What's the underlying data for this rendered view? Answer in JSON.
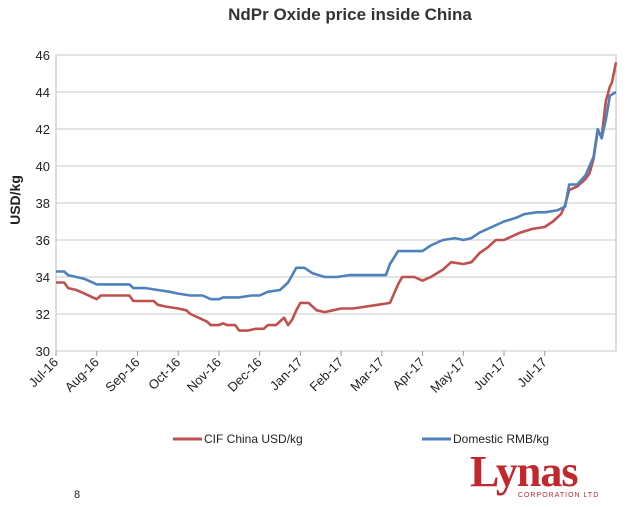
{
  "chart_data": {
    "type": "line",
    "title": "NdPr Oxide price inside China",
    "ylabel": "USD/kg",
    "xlabel": "",
    "ylim": [
      30,
      46
    ],
    "yticks": [
      "30",
      "32",
      "34",
      "36",
      "38",
      "40",
      "42",
      "44",
      "46"
    ],
    "x_categories": [
      "Jul-16",
      "Aug-16",
      "Sep-16",
      "Oct-16",
      "Nov-16",
      "Dec-16",
      "Jan-17",
      "Feb-17",
      "Mar-17",
      "Apr-17",
      "May-17",
      "Jun-17",
      "Jul-17"
    ],
    "grid": "horizontal",
    "legend_position": "bottom",
    "series": [
      {
        "name": "CIF China USD/kg",
        "color": "#c0504d",
        "points": [
          [
            0,
            33.7
          ],
          [
            0.2,
            33.7
          ],
          [
            0.3,
            33.4
          ],
          [
            0.5,
            33.3
          ],
          [
            0.7,
            33.1
          ],
          [
            0.9,
            32.9
          ],
          [
            1.0,
            32.8
          ],
          [
            1.1,
            33.0
          ],
          [
            1.3,
            33.0
          ],
          [
            1.6,
            33.0
          ],
          [
            1.8,
            33.0
          ],
          [
            1.9,
            32.7
          ],
          [
            2.2,
            32.7
          ],
          [
            2.4,
            32.7
          ],
          [
            2.5,
            32.5
          ],
          [
            2.7,
            32.4
          ],
          [
            3.0,
            32.3
          ],
          [
            3.2,
            32.2
          ],
          [
            3.3,
            32.0
          ],
          [
            3.5,
            31.8
          ],
          [
            3.7,
            31.6
          ],
          [
            3.8,
            31.4
          ],
          [
            4.0,
            31.4
          ],
          [
            4.1,
            31.5
          ],
          [
            4.2,
            31.4
          ],
          [
            4.4,
            31.4
          ],
          [
            4.5,
            31.1
          ],
          [
            4.7,
            31.1
          ],
          [
            4.9,
            31.2
          ],
          [
            5.1,
            31.2
          ],
          [
            5.2,
            31.4
          ],
          [
            5.4,
            31.4
          ],
          [
            5.5,
            31.6
          ],
          [
            5.6,
            31.8
          ],
          [
            5.7,
            31.4
          ],
          [
            5.8,
            31.7
          ],
          [
            5.9,
            32.2
          ],
          [
            6.0,
            32.6
          ],
          [
            6.2,
            32.6
          ],
          [
            6.3,
            32.4
          ],
          [
            6.4,
            32.2
          ],
          [
            6.6,
            32.1
          ],
          [
            6.8,
            32.2
          ],
          [
            7.0,
            32.3
          ],
          [
            7.3,
            32.3
          ],
          [
            7.6,
            32.4
          ],
          [
            7.9,
            32.5
          ],
          [
            8.2,
            32.6
          ],
          [
            8.3,
            33.1
          ],
          [
            8.4,
            33.6
          ],
          [
            8.5,
            34.0
          ],
          [
            8.8,
            34.0
          ],
          [
            9.0,
            33.8
          ],
          [
            9.2,
            34.0
          ],
          [
            9.5,
            34.4
          ],
          [
            9.7,
            34.8
          ],
          [
            10.0,
            34.7
          ],
          [
            10.2,
            34.8
          ],
          [
            10.4,
            35.3
          ],
          [
            10.6,
            35.6
          ],
          [
            10.8,
            36.0
          ],
          [
            11.0,
            36.0
          ],
          [
            11.2,
            36.2
          ],
          [
            11.4,
            36.4
          ],
          [
            11.7,
            36.6
          ],
          [
            12.0,
            36.7
          ],
          [
            12.2,
            37.0
          ],
          [
            12.4,
            37.4
          ],
          [
            12.5,
            37.9
          ],
          [
            12.6,
            38.7
          ],
          [
            12.8,
            38.9
          ],
          [
            13.0,
            39.3
          ],
          [
            13.1,
            39.6
          ],
          [
            13.2,
            40.4
          ],
          [
            13.3,
            41.9
          ],
          [
            13.4,
            41.6
          ],
          [
            13.5,
            43.5
          ],
          [
            13.6,
            44.3
          ],
          [
            13.65,
            44.5
          ],
          [
            13.75,
            45.6
          ]
        ]
      },
      {
        "name": "Domestic RMB/kg",
        "color": "#4f81bd",
        "points": [
          [
            0,
            34.3
          ],
          [
            0.2,
            34.3
          ],
          [
            0.3,
            34.1
          ],
          [
            0.5,
            34.0
          ],
          [
            0.7,
            33.9
          ],
          [
            0.9,
            33.7
          ],
          [
            1.0,
            33.6
          ],
          [
            1.3,
            33.6
          ],
          [
            1.6,
            33.6
          ],
          [
            1.8,
            33.6
          ],
          [
            1.9,
            33.4
          ],
          [
            2.2,
            33.4
          ],
          [
            2.5,
            33.3
          ],
          [
            2.8,
            33.2
          ],
          [
            3.0,
            33.1
          ],
          [
            3.3,
            33.0
          ],
          [
            3.6,
            33.0
          ],
          [
            3.8,
            32.8
          ],
          [
            4.0,
            32.8
          ],
          [
            4.1,
            32.9
          ],
          [
            4.5,
            32.9
          ],
          [
            4.8,
            33.0
          ],
          [
            5.0,
            33.0
          ],
          [
            5.2,
            33.2
          ],
          [
            5.5,
            33.3
          ],
          [
            5.7,
            33.7
          ],
          [
            5.9,
            34.5
          ],
          [
            6.1,
            34.5
          ],
          [
            6.3,
            34.2
          ],
          [
            6.6,
            34.0
          ],
          [
            6.9,
            34.0
          ],
          [
            7.2,
            34.1
          ],
          [
            7.5,
            34.1
          ],
          [
            7.8,
            34.1
          ],
          [
            8.1,
            34.1
          ],
          [
            8.2,
            34.7
          ],
          [
            8.4,
            35.4
          ],
          [
            8.7,
            35.4
          ],
          [
            9.0,
            35.4
          ],
          [
            9.2,
            35.7
          ],
          [
            9.5,
            36.0
          ],
          [
            9.8,
            36.1
          ],
          [
            10.0,
            36.0
          ],
          [
            10.2,
            36.1
          ],
          [
            10.4,
            36.4
          ],
          [
            10.7,
            36.7
          ],
          [
            11.0,
            37.0
          ],
          [
            11.3,
            37.2
          ],
          [
            11.5,
            37.4
          ],
          [
            11.8,
            37.5
          ],
          [
            12.0,
            37.5
          ],
          [
            12.3,
            37.6
          ],
          [
            12.5,
            37.8
          ],
          [
            12.6,
            39.0
          ],
          [
            12.8,
            39.0
          ],
          [
            13.0,
            39.5
          ],
          [
            13.2,
            40.5
          ],
          [
            13.3,
            42.0
          ],
          [
            13.4,
            41.5
          ],
          [
            13.5,
            42.5
          ],
          [
            13.6,
            43.8
          ],
          [
            13.75,
            44.0
          ]
        ]
      }
    ]
  },
  "footer": {
    "page_number": "8",
    "logo_word": "Lynas",
    "logo_sub": "CORPORATION LTD"
  }
}
